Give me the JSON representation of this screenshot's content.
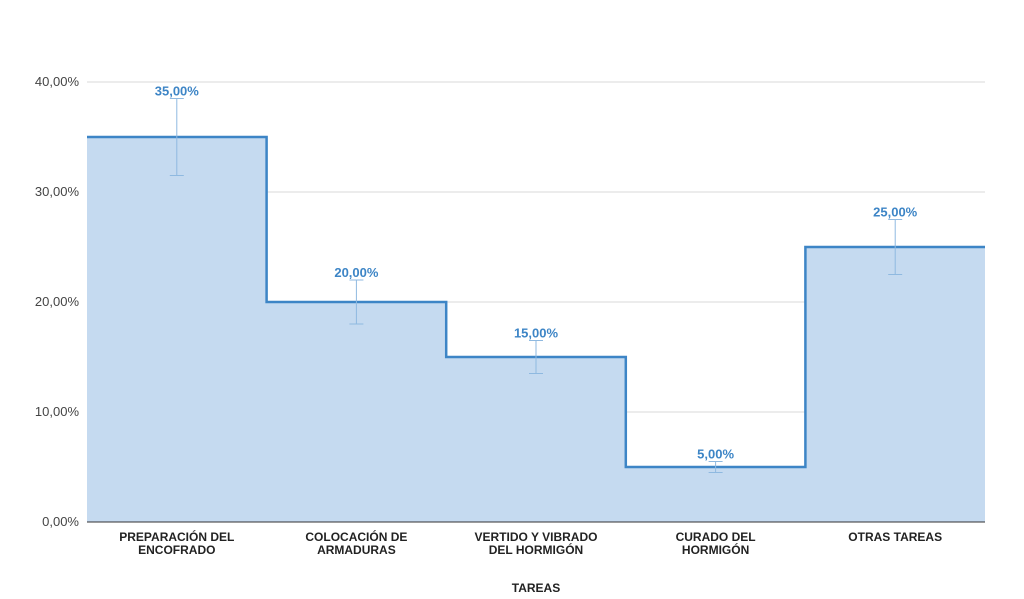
{
  "chart_data": {
    "type": "area",
    "step": true,
    "title": "",
    "xlabel": "TAREAS",
    "ylabel": "",
    "categories": [
      [
        "PREPARACIÓN DEL",
        "ENCOFRADO"
      ],
      [
        "COLOCACIÓN DE",
        "ARMADURAS"
      ],
      [
        "VERTIDO Y VIBRADO",
        "DEL HORMIGÓN"
      ],
      [
        "CURADO DEL",
        "HORMIGÓN"
      ],
      [
        "OTRAS TAREAS"
      ]
    ],
    "values": [
      35,
      20,
      15,
      5,
      25
    ],
    "data_labels": [
      "35,00%",
      "20,00%",
      "15,00%",
      "5,00%",
      "25,00%"
    ],
    "error_bars": [
      {
        "low": 31.5,
        "high": 38.5
      },
      {
        "low": 18,
        "high": 22
      },
      {
        "low": 13.5,
        "high": 16.5
      },
      {
        "low": 4.5,
        "high": 5.5
      },
      {
        "low": 22.5,
        "high": 27.5
      }
    ],
    "ylim": [
      0,
      40
    ],
    "yticks": [
      0,
      10,
      20,
      30,
      40
    ],
    "ytick_labels": [
      "0,00%",
      "10,00%",
      "20,00%",
      "30,00%",
      "40,00%"
    ],
    "grid": true,
    "legend": "none",
    "colors": {
      "line": "#3d85c6",
      "fill": "#c5daf0",
      "label": "#3d85c6",
      "error_bar": "#8fb9e0",
      "grid": "#d9d9d9",
      "baseline": "#333333"
    }
  }
}
